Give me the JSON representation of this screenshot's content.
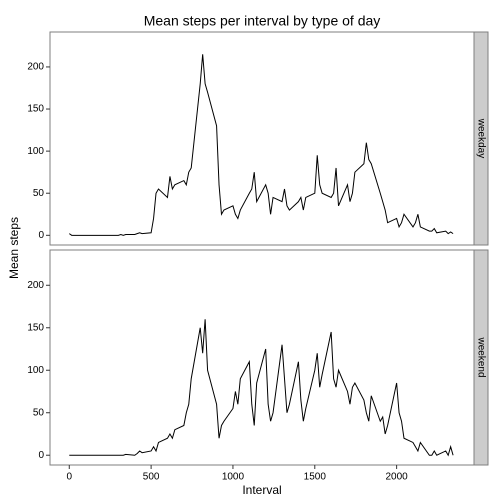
{
  "chart_data": {
    "type": "line",
    "title": "Mean steps per interval by type of day",
    "x_label": "Interval",
    "y_label": "Mean steps",
    "xlim": [
      -117.75,
      2472.75
    ],
    "xticks": [
      0,
      500,
      1000,
      1500,
      2000
    ],
    "ylim": [
      -11.5,
      241.5
    ],
    "yticks": [
      0,
      50,
      100,
      150,
      200
    ],
    "grid": false,
    "x": [
      0,
      15,
      30,
      45,
      100,
      115,
      130,
      145,
      200,
      215,
      230,
      245,
      300,
      315,
      330,
      345,
      400,
      415,
      430,
      445,
      500,
      515,
      530,
      545,
      600,
      615,
      630,
      645,
      700,
      715,
      730,
      745,
      800,
      815,
      830,
      845,
      900,
      915,
      930,
      945,
      1000,
      1015,
      1030,
      1045,
      1100,
      1115,
      1130,
      1145,
      1200,
      1215,
      1230,
      1245,
      1300,
      1315,
      1330,
      1345,
      1400,
      1415,
      1430,
      1445,
      1500,
      1515,
      1530,
      1545,
      1600,
      1615,
      1630,
      1645,
      1700,
      1715,
      1730,
      1745,
      1800,
      1815,
      1830,
      1845,
      1900,
      1915,
      1930,
      1945,
      2000,
      2015,
      2030,
      2045,
      2100,
      2115,
      2130,
      2145,
      2200,
      2215,
      2230,
      2245,
      2300,
      2315,
      2330,
      2345
    ],
    "series": [
      {
        "name": "weekday",
        "color": "#000000",
        "values": [
          2,
          0,
          0,
          0,
          0,
          0,
          0,
          0,
          0,
          0,
          0,
          0,
          0,
          1,
          0,
          1,
          1,
          2,
          3,
          2,
          3,
          20,
          50,
          55,
          45,
          70,
          55,
          60,
          65,
          60,
          75,
          80,
          180,
          215,
          180,
          170,
          130,
          60,
          25,
          30,
          35,
          25,
          20,
          30,
          50,
          55,
          75,
          40,
          60,
          50,
          25,
          45,
          40,
          55,
          35,
          30,
          40,
          45,
          30,
          45,
          50,
          95,
          60,
          50,
          45,
          50,
          80,
          35,
          60,
          40,
          50,
          75,
          85,
          110,
          90,
          85,
          50,
          40,
          30,
          15,
          20,
          10,
          15,
          25,
          10,
          15,
          25,
          10,
          5,
          5,
          8,
          3,
          5,
          2,
          4,
          2
        ]
      },
      {
        "name": "weekend",
        "color": "#000000",
        "values": [
          0,
          0,
          0,
          0,
          0,
          0,
          0,
          0,
          0,
          0,
          0,
          0,
          0,
          0,
          0,
          1,
          0,
          2,
          5,
          3,
          5,
          10,
          5,
          15,
          20,
          25,
          20,
          30,
          35,
          50,
          60,
          90,
          150,
          120,
          160,
          100,
          60,
          20,
          35,
          40,
          55,
          75,
          60,
          90,
          110,
          60,
          35,
          85,
          125,
          60,
          40,
          50,
          130,
          90,
          50,
          60,
          110,
          65,
          40,
          55,
          100,
          120,
          80,
          95,
          145,
          90,
          80,
          100,
          75,
          60,
          80,
          85,
          65,
          50,
          40,
          70,
          40,
          45,
          25,
          35,
          85,
          50,
          40,
          20,
          15,
          10,
          5,
          15,
          0,
          0,
          5,
          0,
          5,
          0,
          10,
          0
        ]
      }
    ]
  }
}
